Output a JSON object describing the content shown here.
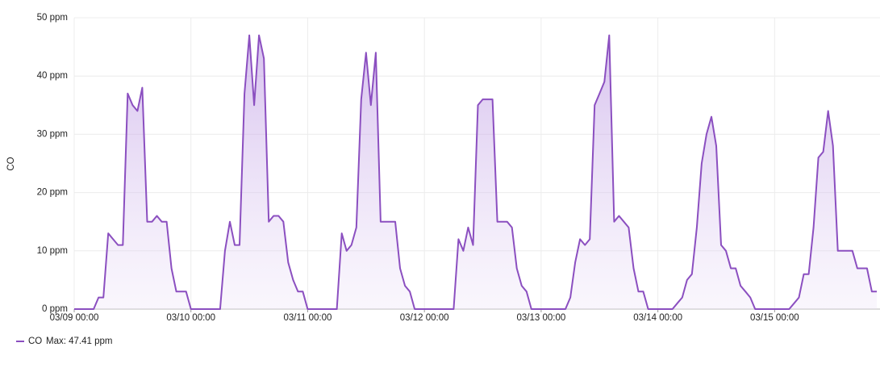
{
  "chart_data": {
    "type": "line",
    "y_label": "CO",
    "legend_stat": "Max: 47.41 ppm",
    "xlim": [
      "03/09 00:00",
      "03/15 21:40"
    ],
    "xticks": [
      "03/09 00:00",
      "03/10 00:00",
      "03/11 00:00",
      "03/12 00:00",
      "03/13 00:00",
      "03/14 00:00",
      "03/15 00:00"
    ],
    "ylim": [
      0,
      50
    ],
    "yticks": [
      {
        "value": 0,
        "label": "0 ppm"
      },
      {
        "value": 10,
        "label": "10 ppm"
      },
      {
        "value": 20,
        "label": "20 ppm"
      },
      {
        "value": 30,
        "label": "30 ppm"
      },
      {
        "value": 40,
        "label": "40 ppm"
      },
      {
        "value": 50,
        "label": "50 ppm"
      }
    ],
    "grid": true,
    "x": [
      "03/09 00:00",
      "03/09 01:00",
      "03/09 02:00",
      "03/09 03:00",
      "03/09 04:00",
      "03/09 05:00",
      "03/09 06:00",
      "03/09 07:00",
      "03/09 08:00",
      "03/09 09:00",
      "03/09 10:00",
      "03/09 11:00",
      "03/09 12:00",
      "03/09 13:00",
      "03/09 14:00",
      "03/09 15:00",
      "03/09 16:00",
      "03/09 17:00",
      "03/09 18:00",
      "03/09 19:00",
      "03/09 20:00",
      "03/09 21:00",
      "03/09 22:00",
      "03/09 23:00",
      "03/10 00:00",
      "03/10 01:00",
      "03/10 02:00",
      "03/10 03:00",
      "03/10 04:00",
      "03/10 05:00",
      "03/10 06:00",
      "03/10 07:00",
      "03/10 08:00",
      "03/10 09:00",
      "03/10 10:00",
      "03/10 11:00",
      "03/10 12:00",
      "03/10 13:00",
      "03/10 14:00",
      "03/10 15:00",
      "03/10 16:00",
      "03/10 17:00",
      "03/10 18:00",
      "03/10 19:00",
      "03/10 20:00",
      "03/10 21:00",
      "03/10 22:00",
      "03/10 23:00",
      "03/11 00:00",
      "03/11 01:00",
      "03/11 02:00",
      "03/11 03:00",
      "03/11 04:00",
      "03/11 05:00",
      "03/11 06:00",
      "03/11 07:00",
      "03/11 08:00",
      "03/11 09:00",
      "03/11 10:00",
      "03/11 11:00",
      "03/11 12:00",
      "03/11 13:00",
      "03/11 14:00",
      "03/11 15:00",
      "03/11 16:00",
      "03/11 17:00",
      "03/11 18:00",
      "03/11 19:00",
      "03/11 20:00",
      "03/11 21:00",
      "03/11 22:00",
      "03/11 23:00",
      "03/12 00:00",
      "03/12 01:00",
      "03/12 02:00",
      "03/12 03:00",
      "03/12 04:00",
      "03/12 05:00",
      "03/12 06:00",
      "03/12 07:00",
      "03/12 08:00",
      "03/12 09:00",
      "03/12 10:00",
      "03/12 11:00",
      "03/12 12:00",
      "03/12 13:00",
      "03/12 14:00",
      "03/12 15:00",
      "03/12 16:00",
      "03/12 17:00",
      "03/12 18:00",
      "03/12 19:00",
      "03/12 20:00",
      "03/12 21:00",
      "03/12 22:00",
      "03/12 23:00",
      "03/13 00:00",
      "03/13 01:00",
      "03/13 02:00",
      "03/13 03:00",
      "03/13 04:00",
      "03/13 05:00",
      "03/13 06:00",
      "03/13 07:00",
      "03/13 08:00",
      "03/13 09:00",
      "03/13 10:00",
      "03/13 11:00",
      "03/13 12:00",
      "03/13 13:00",
      "03/13 14:00",
      "03/13 15:00",
      "03/13 16:00",
      "03/13 17:00",
      "03/13 18:00",
      "03/13 19:00",
      "03/13 20:00",
      "03/13 21:00",
      "03/13 22:00",
      "03/13 23:00",
      "03/14 00:00",
      "03/14 01:00",
      "03/14 02:00",
      "03/14 03:00",
      "03/14 04:00",
      "03/14 05:00",
      "03/14 06:00",
      "03/14 07:00",
      "03/14 08:00",
      "03/14 09:00",
      "03/14 10:00",
      "03/14 11:00",
      "03/14 12:00",
      "03/14 13:00",
      "03/14 14:00",
      "03/14 15:00",
      "03/14 16:00",
      "03/14 17:00",
      "03/14 18:00",
      "03/14 19:00",
      "03/14 20:00",
      "03/14 21:00",
      "03/14 22:00",
      "03/14 23:00",
      "03/15 00:00",
      "03/15 01:00",
      "03/15 02:00",
      "03/15 03:00",
      "03/15 04:00",
      "03/15 05:00",
      "03/15 06:00",
      "03/15 07:00",
      "03/15 08:00",
      "03/15 09:00",
      "03/15 10:00",
      "03/15 11:00",
      "03/15 12:00",
      "03/15 13:00",
      "03/15 14:00",
      "03/15 15:00",
      "03/15 16:00",
      "03/15 17:00",
      "03/15 18:00",
      "03/15 19:00",
      "03/15 20:00",
      "03/15 21:00"
    ],
    "series": [
      {
        "name": "CO",
        "color": "#8b4fc0",
        "values": [
          0,
          0,
          0,
          0,
          0,
          2,
          2,
          13,
          12,
          11,
          11,
          37,
          35,
          34,
          38,
          15,
          15,
          16,
          15,
          15,
          7,
          3,
          3,
          3,
          0,
          0,
          0,
          0,
          0,
          0,
          0,
          10,
          15,
          11,
          11,
          37,
          47,
          35,
          47,
          43,
          15,
          16,
          16,
          15,
          8,
          5,
          3,
          3,
          0,
          0,
          0,
          0,
          0,
          0,
          0,
          13,
          10,
          11,
          14,
          36,
          44,
          35,
          44,
          15,
          15,
          15,
          15,
          7,
          4,
          3,
          0,
          0,
          0,
          0,
          0,
          0,
          0,
          0,
          0,
          12,
          10,
          14,
          11,
          35,
          36,
          36,
          36,
          15,
          15,
          15,
          14,
          7,
          4,
          3,
          0,
          0,
          0,
          0,
          0,
          0,
          0,
          0,
          2,
          8,
          12,
          11,
          12,
          35,
          37,
          39,
          47,
          15,
          16,
          15,
          14,
          7,
          3,
          3,
          0,
          0,
          0,
          0,
          0,
          0,
          1,
          2,
          5,
          6,
          14,
          25,
          30,
          33,
          28,
          11,
          10,
          7,
          7,
          4,
          3,
          2,
          0,
          0,
          0,
          0,
          0,
          0,
          0,
          0,
          1,
          2,
          6,
          6,
          14,
          26,
          27,
          34,
          28,
          10,
          10,
          10,
          10,
          7,
          7,
          7,
          3,
          3
        ]
      }
    ]
  }
}
